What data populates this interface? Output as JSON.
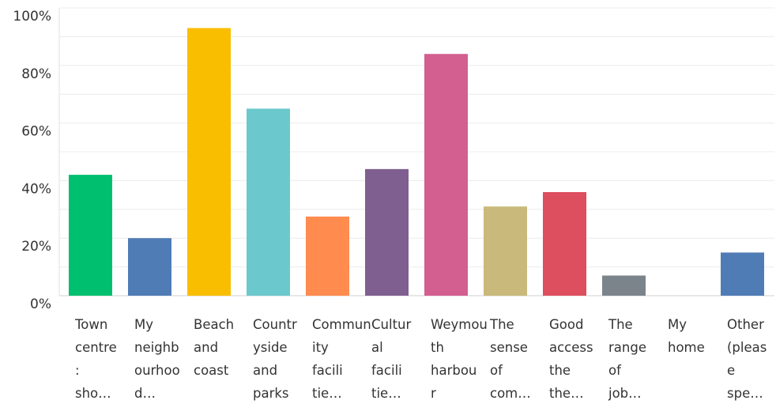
{
  "chart_data": {
    "type": "bar",
    "categories": [
      [
        "Town",
        "centre",
        ":",
        "sho…"
      ],
      [
        "My",
        "neighb",
        "ourhoo",
        "d…"
      ],
      [
        "Beach",
        "and",
        "coast"
      ],
      [
        "Countr",
        "yside",
        "and",
        "parks"
      ],
      [
        "Commun",
        "ity",
        "facili",
        "tie…"
      ],
      [
        "Cultur",
        "al",
        "facili",
        "tie…"
      ],
      [
        "Weymou",
        "th",
        "harbou",
        "r"
      ],
      [
        "The",
        "sense",
        "of",
        "com…"
      ],
      [
        "Good",
        "access",
        "the",
        "the…"
      ],
      [
        "The",
        "range",
        "of",
        "job…"
      ],
      [
        "My",
        "home"
      ],
      [
        "Other",
        "(pleas",
        "e",
        "spe…"
      ]
    ],
    "values": [
      42,
      20,
      93,
      65,
      27.5,
      44,
      84,
      31,
      36,
      7,
      0,
      15
    ],
    "colors": [
      "#00bf6f",
      "#507cb6",
      "#f9be00",
      "#6bc8cd",
      "#ff8b4f",
      "#7f5f90",
      "#d25f90",
      "#c9b97b",
      "#dd4e5f",
      "#7b848b",
      "#507cb6",
      "#507cb6"
    ],
    "ylim": [
      0,
      100
    ],
    "yticks": [
      {
        "value": 0,
        "label": "0%"
      },
      {
        "value": 20,
        "label": "20%"
      },
      {
        "value": 40,
        "label": "40%"
      },
      {
        "value": 60,
        "label": "60%"
      },
      {
        "value": 80,
        "label": "80%"
      },
      {
        "value": 100,
        "label": "100%"
      }
    ],
    "minor_yticks": [
      10,
      30,
      50,
      70,
      90
    ],
    "grid": true
  }
}
